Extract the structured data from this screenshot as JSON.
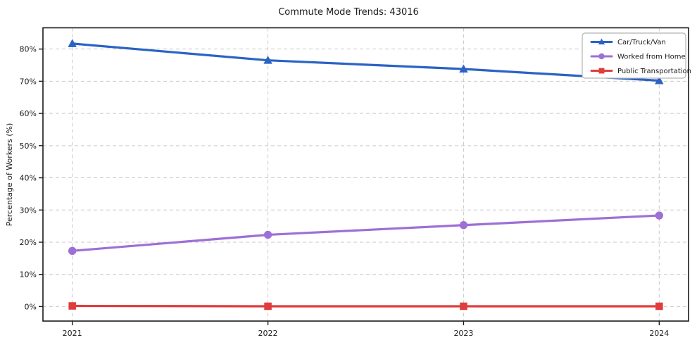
{
  "chart_data": {
    "type": "line",
    "title": "Commute Mode Trends: 43016",
    "xlabel": "",
    "ylabel": "Percentage of Workers (%)",
    "categories": [
      2021,
      2022,
      2023,
      2024
    ],
    "x_tick_labels": [
      "2021",
      "2022",
      "2023",
      "2024"
    ],
    "y_ticks": [
      0,
      10,
      20,
      30,
      40,
      50,
      60,
      70,
      80
    ],
    "y_tick_labels": [
      "0%",
      "10%",
      "20%",
      "30%",
      "40%",
      "50%",
      "60%",
      "70%",
      "80%"
    ],
    "xlim": [
      2020.85,
      2024.15
    ],
    "ylim": [
      -4.5,
      86.6
    ],
    "grid": {
      "enabled": true,
      "style": "dashed",
      "color": "#c9c9c9"
    },
    "legend": {
      "position": "upper right",
      "border_color": "#b3b3b3",
      "background": "#ffffff"
    },
    "series": [
      {
        "name": "Car/Truck/Van",
        "color": "#2a63c4",
        "marker": "triangle",
        "values": [
          81.7,
          76.5,
          73.8,
          70.2
        ]
      },
      {
        "name": "Worked from Home",
        "color": "#9e6fd6",
        "marker": "circle",
        "values": [
          17.3,
          22.3,
          25.3,
          28.3
        ]
      },
      {
        "name": "Public Transportation",
        "color": "#e03c3c",
        "marker": "square",
        "values": [
          0.2,
          0.1,
          0.1,
          0.1
        ]
      }
    ]
  },
  "frame": {
    "spine_color": "#1a1a1a",
    "background": "#ffffff"
  }
}
